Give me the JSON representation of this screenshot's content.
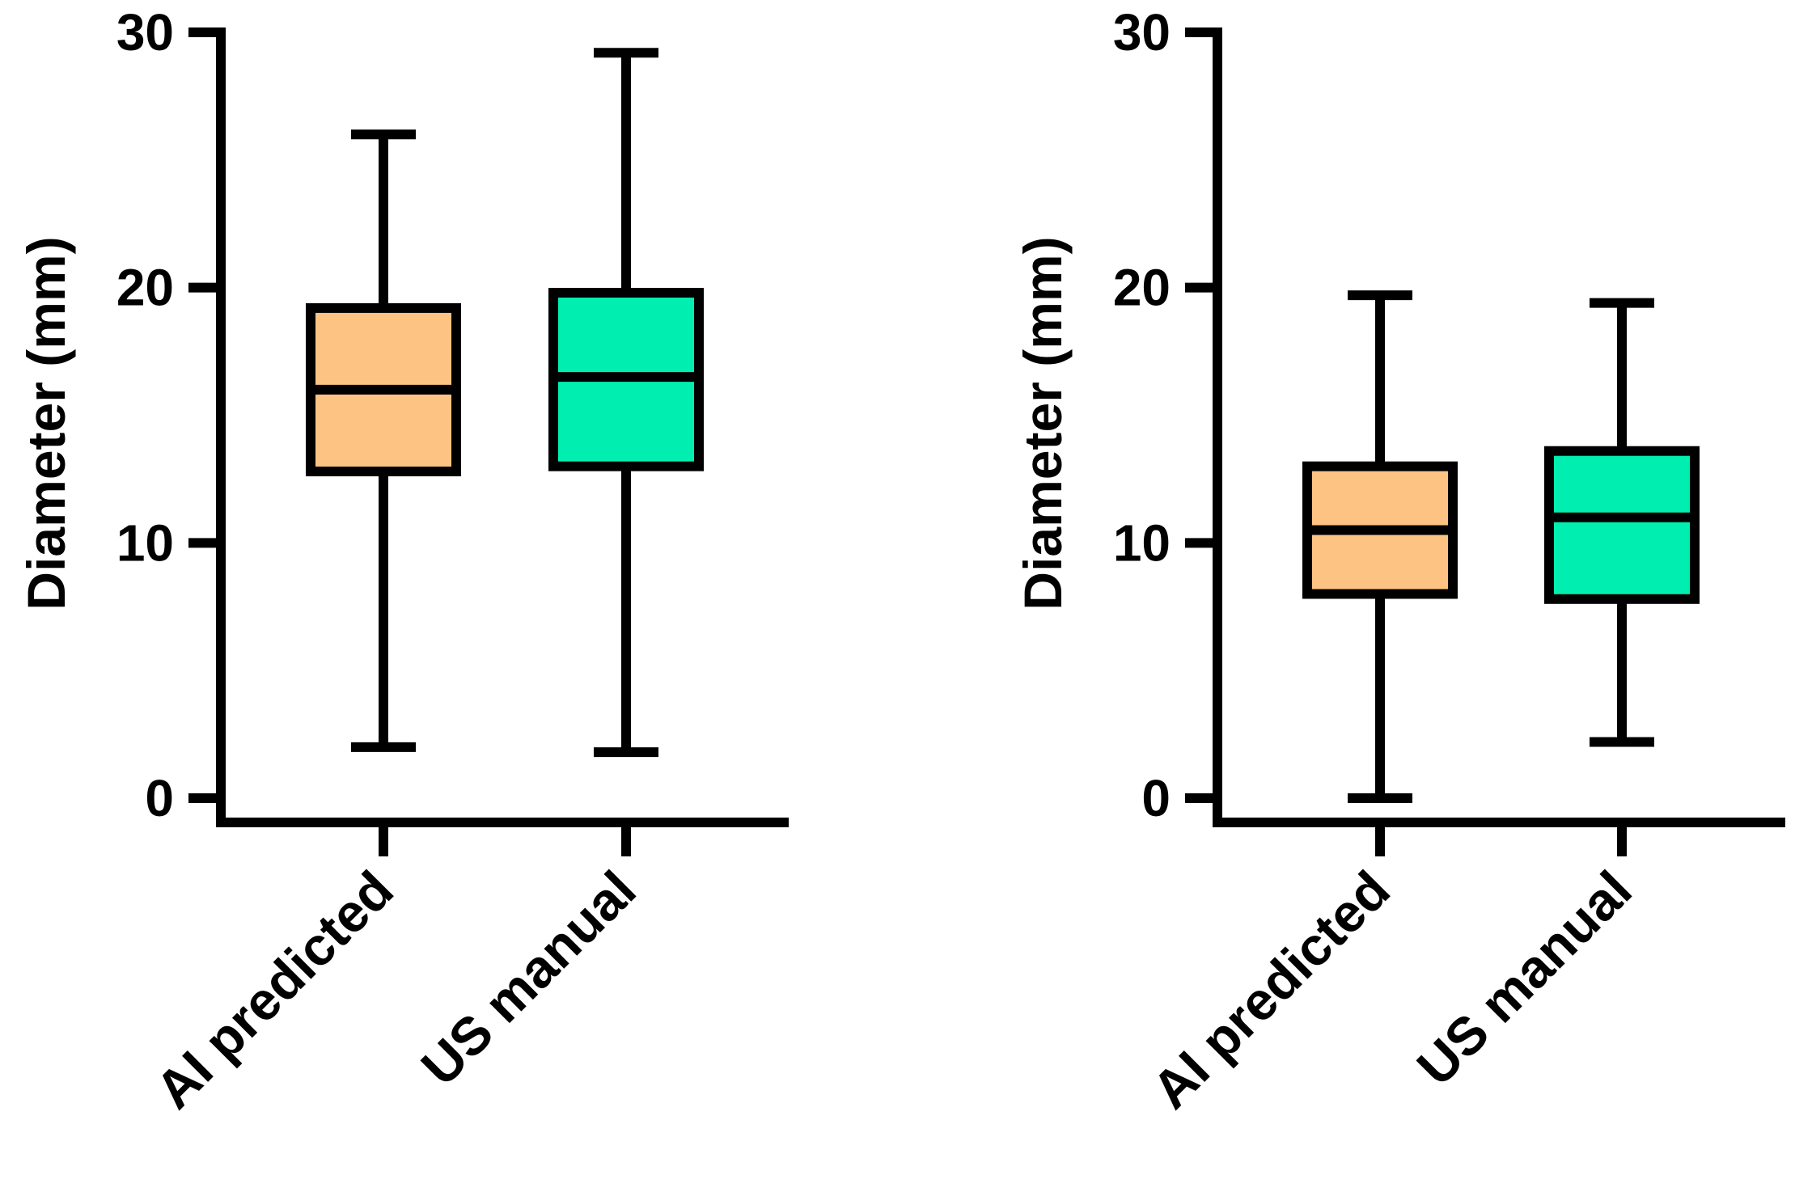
{
  "chart_data": [
    {
      "type": "box",
      "title": "",
      "ylabel": "Diameter (mm)",
      "xlabel": "",
      "ylim": [
        0,
        30
      ],
      "yticks": [
        0,
        10,
        20,
        30
      ],
      "ytick_labels": [
        "0",
        "10",
        "20",
        "30"
      ],
      "categories": [
        "AI predicted",
        "US manual"
      ],
      "colors": [
        "#FDC383",
        "#00EFB0"
      ],
      "boxes": [
        {
          "name": "AI predicted",
          "min": 2.0,
          "q1": 12.8,
          "median": 16.0,
          "q3": 19.2,
          "max": 26.0
        },
        {
          "name": "US manual",
          "min": 1.8,
          "q1": 13.0,
          "median": 16.5,
          "q3": 19.8,
          "max": 29.2
        }
      ]
    },
    {
      "type": "box",
      "title": "",
      "ylabel": "Diameter (mm)",
      "xlabel": "",
      "ylim": [
        0,
        30
      ],
      "yticks": [
        0,
        10,
        20,
        30
      ],
      "ytick_labels": [
        "0",
        "10",
        "20",
        "30"
      ],
      "categories": [
        "AI predicted",
        "US manual"
      ],
      "colors": [
        "#FDC383",
        "#00EFB0"
      ],
      "boxes": [
        {
          "name": "AI predicted",
          "min": 0.0,
          "q1": 8.0,
          "median": 10.5,
          "q3": 13.0,
          "max": 19.7
        },
        {
          "name": "US manual",
          "min": 2.2,
          "q1": 7.8,
          "median": 11.0,
          "q3": 13.6,
          "max": 19.4
        }
      ]
    }
  ]
}
